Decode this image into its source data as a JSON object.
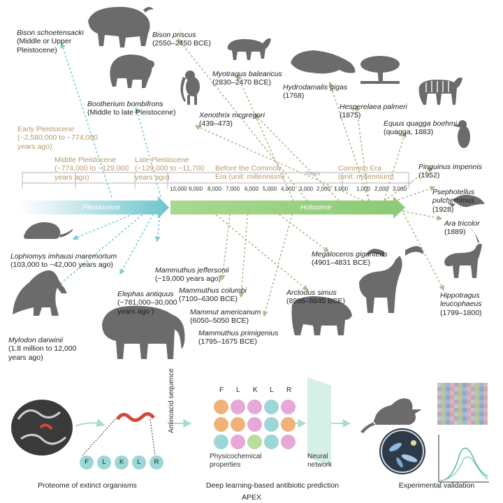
{
  "periods": [
    {
      "name": "Early Pleistocene",
      "range": "(~2,580,000 to ~774,000\nyears ago)"
    },
    {
      "name": "Middle Pleistocene",
      "range": "(~774,000 to ~129,000\nyears ago)"
    },
    {
      "name": "Late Pleistocene",
      "range": "(~129,000 to ~11,700\nyears ago)"
    },
    {
      "name": "Before the Common",
      "range": "Era (unit: millennium)"
    },
    {
      "name": "Common Era",
      "range": "(unit: millennium)"
    }
  ],
  "axis": {
    "years_label": "Years",
    "ticks": [
      "10,000",
      "9,000",
      "8,000",
      "7,000",
      "6,000",
      "5,000",
      "4,000",
      "3,000",
      "2,000",
      "1,000",
      "1,000",
      "2,000",
      "3,000"
    ],
    "pleistocene_label": "Pleistocene",
    "holocene_label": "Holocene"
  },
  "species": [
    {
      "name": "Bison schoetensacki",
      "detail": "(Middle or Upper\nPleistocene)"
    },
    {
      "name": "Bison priscus",
      "detail": "(2550–2450 BCE)"
    },
    {
      "name": "Myotragus balearicus",
      "detail": "(2830–2470 BCE)"
    },
    {
      "name": "Hydrodamalis gigas",
      "detail": "(1768)"
    },
    {
      "name": "Hesperelaea palmeri",
      "detail": "(1875)"
    },
    {
      "name": "Bootherium bombifrons",
      "detail": "(Middle to late Pleistocene)"
    },
    {
      "name": "Xenothrix mcgregori",
      "detail": "(439–473)"
    },
    {
      "name": "Equus quagga boehmi",
      "detail": "(quagga, 1883)"
    },
    {
      "name": "Pinguinus impennis",
      "detail": "(1952)"
    },
    {
      "name": "Psephotellus\npulcherrimus",
      "detail": "(1928)"
    },
    {
      "name": "Ara tricolor",
      "detail": "(1889)"
    },
    {
      "name": "Lophiomys imhausi maremortum",
      "detail": "(103,000 to ~42,000 years ago)"
    },
    {
      "name": "Mylodon darwinii",
      "detail": "(1.8 million to 12,000\nyears ago)"
    },
    {
      "name": "Elephas antiquus",
      "detail": "(~781,000–30,000\nyears ago )"
    },
    {
      "name": "Mammuthus jeffersonii",
      "detail": "(~19,000 years ago)"
    },
    {
      "name": "Mammuthus columbi",
      "detail": "(7100–6300 BCE)"
    },
    {
      "name": "Mammut americanum",
      "detail": "(6050–5050 BCE)"
    },
    {
      "name": "Mammuthus primigenius",
      "detail": "(1795–1675 BCE)"
    },
    {
      "name": "Arctodus simus",
      "detail": "(8995–8845 BCE)"
    },
    {
      "name": "Megaloceros giganteus",
      "detail": "(4901–4831 BCE)"
    },
    {
      "name": "Hippotragus\nleucophaeus",
      "detail": "(1799–1800)"
    }
  ],
  "pipeline": {
    "sequence_letters": [
      "F",
      "L",
      "K",
      "L",
      "R"
    ],
    "header_letters": [
      "F",
      "L",
      "K",
      "L",
      "R"
    ],
    "aminoacid_label": "Aminoacid sequence",
    "physchem_label": "Physicochemical\nproperties",
    "nn_label": "Neural\nnetwork",
    "captions": [
      "Proteome of extinct organisms",
      "Deep learning-based antibiotic prediction",
      "Experimental validation"
    ],
    "footer": "APEX"
  },
  "colors": {
    "pleistocene": "#7ccbd0",
    "holocene": "#9fd58a",
    "period_text": "#b89868",
    "silhouette": "#6b6b6b",
    "circle_orange": "#f0b27a",
    "circle_pink": "#e6a8d8",
    "circle_teal": "#9dd6d6",
    "circle_green": "#b9dca0"
  }
}
